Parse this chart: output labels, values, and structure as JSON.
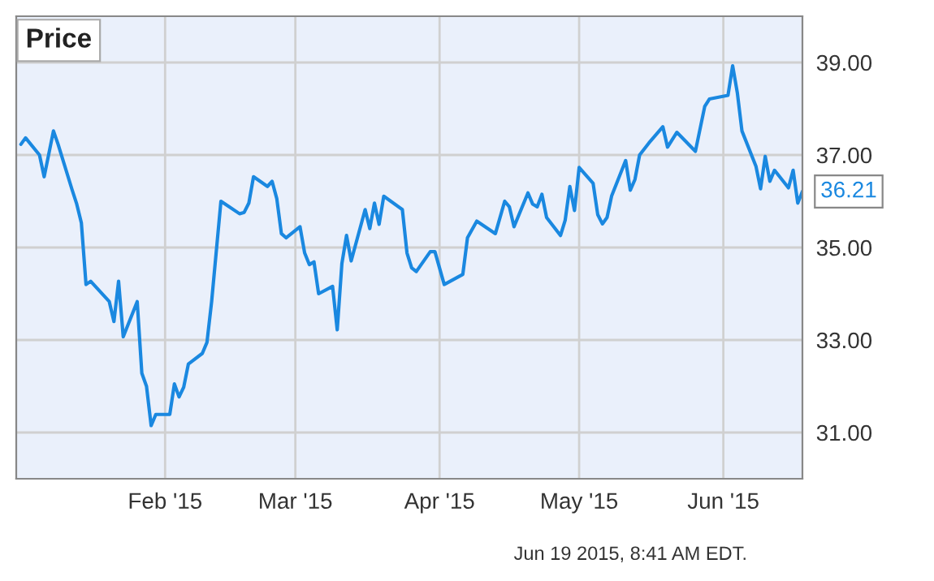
{
  "chart_data": {
    "type": "line",
    "title": "Price",
    "x": [
      "2015-01-01",
      "2015-01-02",
      "2015-01-05",
      "2015-01-06",
      "2015-01-08",
      "2015-01-09",
      "2015-01-12",
      "2015-01-13",
      "2015-01-14",
      "2015-01-15",
      "2015-01-16",
      "2015-01-20",
      "2015-01-21",
      "2015-01-22",
      "2015-01-23",
      "2015-01-26",
      "2015-01-27",
      "2015-01-28",
      "2015-01-29",
      "2015-01-30",
      "2015-02-02",
      "2015-02-03",
      "2015-02-04",
      "2015-02-05",
      "2015-02-06",
      "2015-02-09",
      "2015-02-10",
      "2015-02-11",
      "2015-02-13",
      "2015-02-17",
      "2015-02-18",
      "2015-02-19",
      "2015-02-20",
      "2015-02-23",
      "2015-02-24",
      "2015-02-25",
      "2015-02-26",
      "2015-02-27",
      "2015-03-02",
      "2015-03-03",
      "2015-03-04",
      "2015-03-05",
      "2015-03-06",
      "2015-03-09",
      "2015-03-10",
      "2015-03-11",
      "2015-03-12",
      "2015-03-13",
      "2015-03-16",
      "2015-03-17",
      "2015-03-18",
      "2015-03-19",
      "2015-03-20",
      "2015-03-24",
      "2015-03-25",
      "2015-03-26",
      "2015-03-27",
      "2015-03-30",
      "2015-03-31",
      "2015-04-02",
      "2015-04-06",
      "2015-04-07",
      "2015-04-09",
      "2015-04-13",
      "2015-04-15",
      "2015-04-16",
      "2015-04-17",
      "2015-04-20",
      "2015-04-21",
      "2015-04-22",
      "2015-04-23",
      "2015-04-24",
      "2015-04-27",
      "2015-04-28",
      "2015-04-29",
      "2015-04-30",
      "2015-05-01",
      "2015-05-04",
      "2015-05-05",
      "2015-05-06",
      "2015-05-07",
      "2015-05-08",
      "2015-05-11",
      "2015-05-12",
      "2015-05-13",
      "2015-05-14",
      "2015-05-16",
      "2015-05-19",
      "2015-05-20",
      "2015-05-22",
      "2015-05-26",
      "2015-05-28",
      "2015-05-29",
      "2015-06-02",
      "2015-06-03",
      "2015-06-04",
      "2015-06-05",
      "2015-06-08",
      "2015-06-09",
      "2015-06-10",
      "2015-06-11",
      "2015-06-12",
      "2015-06-15",
      "2015-06-16",
      "2015-06-17",
      "2015-06-18"
    ],
    "series": [
      {
        "color": "#1a88e0",
        "values": [
          37.23,
          37.37,
          37.0,
          36.53,
          37.52,
          37.23,
          36.25,
          35.94,
          35.53,
          34.2,
          34.27,
          33.83,
          33.4,
          34.27,
          33.07,
          33.83,
          32.28,
          32.0,
          31.15,
          31.39,
          31.39,
          32.05,
          31.77,
          31.98,
          32.48,
          32.71,
          32.95,
          33.83,
          36.0,
          35.73,
          35.76,
          35.96,
          36.53,
          36.32,
          36.43,
          36.06,
          35.3,
          35.21,
          35.45,
          34.88,
          34.63,
          34.69,
          34.0,
          34.16,
          33.22,
          34.65,
          35.26,
          34.71,
          35.82,
          35.41,
          35.96,
          35.5,
          36.11,
          35.82,
          34.88,
          34.56,
          34.48,
          34.91,
          34.91,
          34.2,
          34.42,
          35.21,
          35.57,
          35.3,
          36.0,
          35.88,
          35.45,
          36.18,
          35.94,
          35.88,
          36.15,
          35.65,
          35.26,
          35.59,
          36.32,
          35.8,
          36.73,
          36.39,
          35.71,
          35.51,
          35.65,
          36.12,
          36.88,
          36.24,
          36.47,
          37.0,
          37.26,
          37.61,
          37.17,
          37.49,
          37.08,
          38.05,
          38.21,
          38.29,
          38.93,
          38.35,
          37.52,
          36.76,
          36.27,
          36.97,
          36.43,
          36.67,
          36.29,
          36.67,
          35.96,
          36.21
        ]
      }
    ],
    "xlim": [
      "2014-12-31",
      "2015-06-18"
    ],
    "xticks": [
      {
        "value": "2015-02-01",
        "label": "Feb '15"
      },
      {
        "value": "2015-03-01",
        "label": "Mar '15"
      },
      {
        "value": "2015-04-01",
        "label": "Apr '15"
      },
      {
        "value": "2015-05-01",
        "label": "May '15"
      },
      {
        "value": "2015-06-01",
        "label": "Jun '15"
      }
    ],
    "ylim": [
      30,
      40
    ],
    "yticks": [
      {
        "value": 31,
        "label": "31.00"
      },
      {
        "value": 33,
        "label": "33.00"
      },
      {
        "value": 35,
        "label": "35.00"
      },
      {
        "value": 37,
        "label": "37.00"
      },
      {
        "value": 39,
        "label": "39.00"
      }
    ],
    "grid": true,
    "legend": false,
    "line_style": "solid",
    "marker": "none",
    "annotations": [
      {
        "text": "36.21",
        "x": "2015-06-18",
        "y": 36.21
      },
      "Jun 19 2015, 8:41 AM EDT."
    ]
  }
}
